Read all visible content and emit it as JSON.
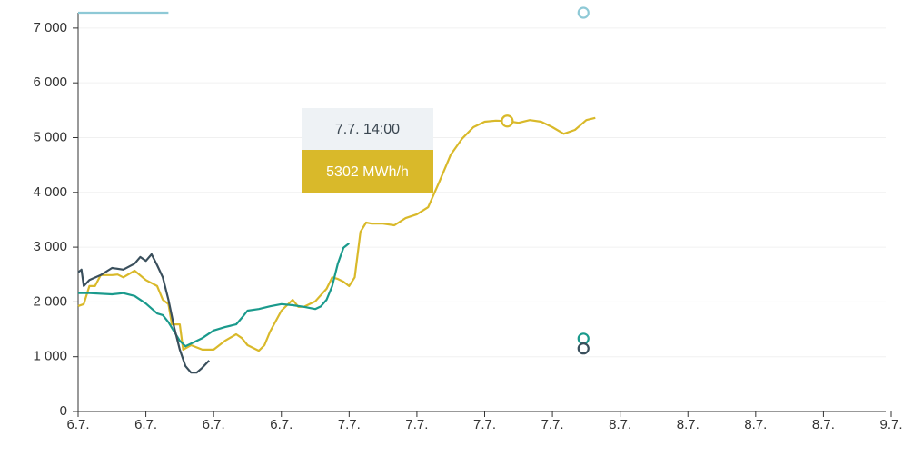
{
  "chart_data": {
    "type": "line",
    "xlim": [
      0,
      72
    ],
    "ylim": [
      0,
      7280
    ],
    "yticks": [
      {
        "value": 0,
        "label": "0"
      },
      {
        "value": 1000,
        "label": "1 000"
      },
      {
        "value": 2000,
        "label": "2 000"
      },
      {
        "value": 3000,
        "label": "3 000"
      },
      {
        "value": 4000,
        "label": "4 000"
      },
      {
        "value": 5000,
        "label": "5 000"
      },
      {
        "value": 6000,
        "label": "6 000"
      },
      {
        "value": 7000,
        "label": "7 000"
      }
    ],
    "xticks": [
      {
        "value": 0,
        "label": "6.7."
      },
      {
        "value": 6,
        "label": "6.7."
      },
      {
        "value": 12,
        "label": "6.7."
      },
      {
        "value": 18,
        "label": "6.7."
      },
      {
        "value": 24,
        "label": "7.7."
      },
      {
        "value": 30,
        "label": "7.7."
      },
      {
        "value": 36,
        "label": "7.7."
      },
      {
        "value": 42,
        "label": "7.7."
      },
      {
        "value": 48,
        "label": "8.7."
      },
      {
        "value": 54,
        "label": "8.7."
      },
      {
        "value": 60,
        "label": "8.7."
      },
      {
        "value": 66,
        "label": "8.7."
      },
      {
        "value": 72,
        "label": "9.7."
      }
    ],
    "grid": true,
    "series": [
      {
        "color": "#d9b92a",
        "x": [
          0,
          0.5,
          1,
          1.5,
          2,
          3,
          3.5,
          4,
          5,
          6,
          7,
          7.5,
          8,
          8.3,
          9,
          9.3,
          10,
          11,
          12,
          13,
          14,
          14.5,
          15,
          16,
          16.5,
          17,
          18,
          19,
          19.5,
          20,
          21,
          22,
          22.5,
          23,
          23.5,
          24,
          24.5,
          25,
          25.5,
          26,
          27,
          28,
          29,
          30,
          31,
          32,
          33,
          34,
          35,
          36,
          37,
          38,
          39,
          40,
          41,
          42,
          43,
          44,
          45,
          45.8
        ],
        "values": [
          1925,
          1960,
          2290,
          2290,
          2490,
          2490,
          2500,
          2450,
          2570,
          2400,
          2290,
          2040,
          1960,
          1590,
          1590,
          1130,
          1210,
          1130,
          1130,
          1290,
          1410,
          1340,
          1210,
          1110,
          1210,
          1460,
          1840,
          2040,
          1910,
          1910,
          2010,
          2240,
          2450,
          2420,
          2370,
          2290,
          2450,
          3280,
          3450,
          3430,
          3430,
          3400,
          3530,
          3600,
          3730,
          4200,
          4690,
          4980,
          5190,
          5290,
          5310,
          5302,
          5270,
          5320,
          5290,
          5190,
          5070,
          5140,
          5320,
          5360
        ]
      },
      {
        "color": "#1a9a8c",
        "x": [
          0,
          1,
          3,
          4,
          5,
          6,
          7,
          7.5,
          8,
          9,
          9.5,
          10,
          11,
          12,
          13,
          14,
          14.5,
          15,
          16,
          17,
          18,
          19,
          20,
          21,
          21.5,
          22,
          22.5,
          23,
          23.5,
          24
        ],
        "values": [
          2160,
          2160,
          2140,
          2160,
          2110,
          1970,
          1790,
          1760,
          1630,
          1290,
          1190,
          1240,
          1340,
          1480,
          1540,
          1590,
          1710,
          1840,
          1870,
          1920,
          1960,
          1940,
          1910,
          1870,
          1920,
          2040,
          2290,
          2700,
          2990,
          3070
        ],
        "point": {
          "x": 44.75,
          "value": 1330
        }
      },
      {
        "color": "#3a4f5c",
        "x": [
          0,
          0.3,
          0.5,
          1,
          2,
          3,
          4,
          5,
          5.5,
          6,
          6.5,
          7,
          7.5,
          8,
          8.5,
          9,
          9.5,
          10,
          10.5,
          11,
          11.6
        ],
        "values": [
          2540,
          2590,
          2290,
          2400,
          2490,
          2620,
          2590,
          2700,
          2820,
          2750,
          2870,
          2670,
          2450,
          2040,
          1540,
          1130,
          830,
          710,
          710,
          800,
          930
        ],
        "point": {
          "x": 44.75,
          "value": 1150
        }
      },
      {
        "color": "#8ec9d6",
        "x": [
          0,
          8
        ],
        "values": [
          7280,
          7280
        ],
        "point": {
          "x": 44.75,
          "value": 7280
        }
      }
    ],
    "tooltip": {
      "series": 0,
      "x": 38,
      "title": "7.7. 14:00",
      "text": "5302 MWh/h"
    }
  }
}
